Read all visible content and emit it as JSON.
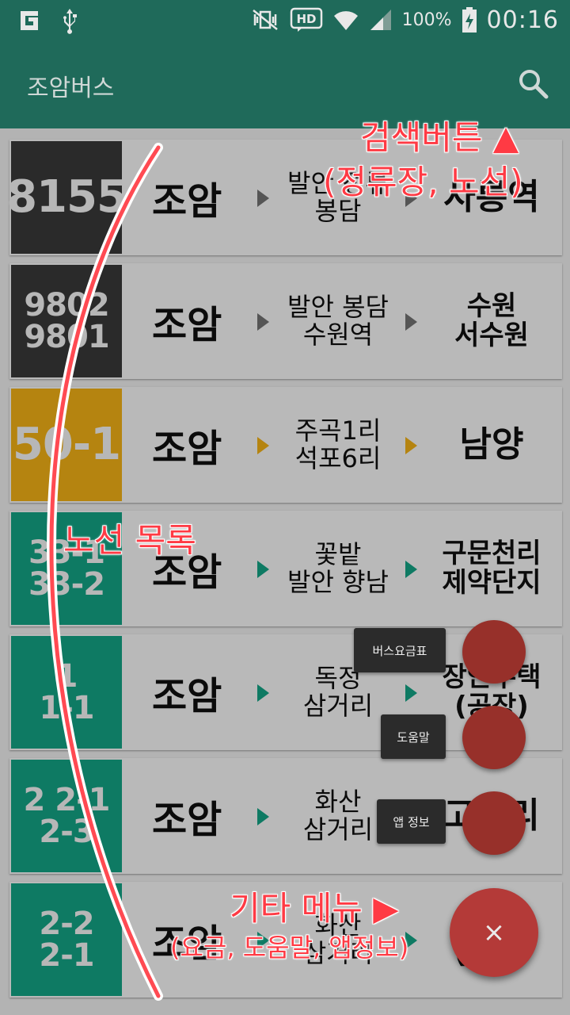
{
  "status_bar": {
    "battery": "100%",
    "time": "00:16"
  },
  "app_bar": {
    "title": "조암버스",
    "search_icon": "search-icon"
  },
  "routes": [
    {
      "number_lines": [
        "8155"
      ],
      "badge_color": "#2a2a2a",
      "from": "조암",
      "via": [
        "발안 정류",
        "봉담"
      ],
      "dest": [
        "사릉역"
      ],
      "arrow_color": "#555555",
      "dest_big": true
    },
    {
      "number_lines": [
        "9802",
        "9801"
      ],
      "badge_color": "#2a2a2a",
      "from": "조암",
      "via": [
        "발안 봉담",
        "수원역"
      ],
      "dest": [
        "수원",
        "서수원"
      ],
      "arrow_color": "#555555",
      "dest_big": false
    },
    {
      "number_lines": [
        "50-1"
      ],
      "badge_color": "#b58410",
      "from": "조암",
      "via": [
        "주곡1리",
        "석포6리"
      ],
      "dest": [
        "남양"
      ],
      "arrow_color": "#b58410",
      "dest_big": true
    },
    {
      "number_lines": [
        "33-1",
        "33-2"
      ],
      "badge_color": "#0e7a63",
      "from": "조암",
      "via": [
        "꽃밭",
        "발안 향남"
      ],
      "dest": [
        "구문천리",
        "제약단지"
      ],
      "arrow_color": "#0e7a63",
      "dest_big": false
    },
    {
      "number_lines": [
        "1",
        "1-1"
      ],
      "badge_color": "#0e7a63",
      "from": "조암",
      "via": [
        "독정",
        "삼거리"
      ],
      "dest": [
        "장안수택",
        "(공장)"
      ],
      "arrow_color": "#0e7a63",
      "dest_big": false
    },
    {
      "number_lines": [
        "2 2-1",
        "2-3"
      ],
      "badge_color": "#0e7a63",
      "from": "조암",
      "via": [
        "화산",
        "삼거리"
      ],
      "dest": [
        "고정리"
      ],
      "arrow_color": "#0e7a63",
      "dest_big": true
    },
    {
      "number_lines": [
        "2-2",
        "2-1"
      ],
      "badge_color": "#0e7a63",
      "from": "조암",
      "via": [
        "화산",
        "삼거리"
      ],
      "dest": [
        "석천리",
        "(공장)"
      ],
      "arrow_color": "#0e7a63",
      "dest_big": false
    }
  ],
  "fab_menu": {
    "fare_label": "버스요금표",
    "help_label": "도움말",
    "about_label": "앱 정보",
    "close_symbol": "×"
  },
  "annotations": {
    "search_note_1": "검색버튼 ▲",
    "search_note_2": "(정류장, 노선)",
    "list_note": "노선 목록",
    "menu_note_1": "기타 메뉴 ▶",
    "menu_note_2": "(요금, 도움말, 앱정보)"
  },
  "colors": {
    "primary": "#1f6a5a",
    "fab": "#b43a38",
    "annotation": "#ff3a44"
  }
}
